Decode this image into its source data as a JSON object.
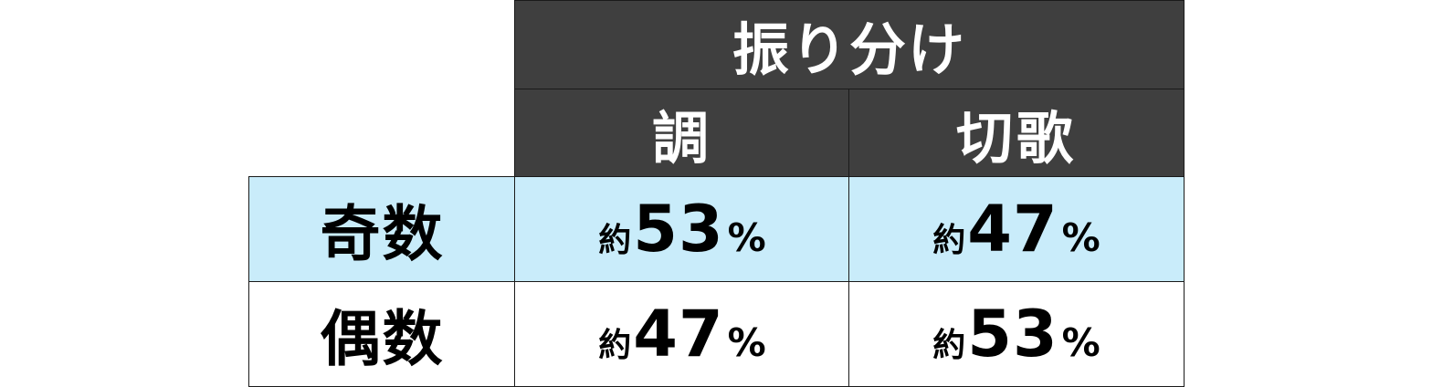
{
  "header": {
    "group_label": "振り分け",
    "columns": [
      "調",
      "切歌"
    ]
  },
  "rows": [
    {
      "label": "奇数",
      "cells": [
        {
          "prefix": "約",
          "value": "53",
          "unit": "%"
        },
        {
          "prefix": "約",
          "value": "47",
          "unit": "%"
        }
      ]
    },
    {
      "label": "偶数",
      "cells": [
        {
          "prefix": "約",
          "value": "47",
          "unit": "%"
        },
        {
          "prefix": "約",
          "value": "53",
          "unit": "%"
        }
      ]
    }
  ],
  "colors": {
    "header_bg": "#3f3f3f",
    "header_text": "#ffffff",
    "odd_row_bg": "#c9ecfa",
    "even_row_bg": "#ffffff",
    "border": "#1a1a1a"
  }
}
